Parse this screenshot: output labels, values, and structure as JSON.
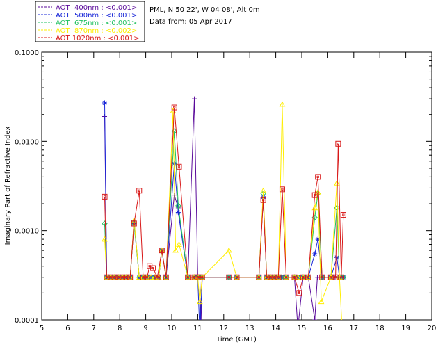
{
  "chart_data": {
    "type": "line",
    "header": {
      "station": "PML, N 50 22', W 04 08', Alt 0m",
      "date": "Data from: 05 Apr 2017"
    },
    "xlabel": "Time (GMT)",
    "ylabel": "Imaginary Part of Refractive Index",
    "x_ticks": [
      5,
      6,
      7,
      8,
      9,
      10,
      11,
      12,
      13,
      14,
      15,
      16,
      17,
      18,
      19,
      20
    ],
    "y_ticks": [
      {
        "value": 0.0001,
        "label": "0.0001"
      },
      {
        "value": 0.001,
        "label": "0.0010"
      },
      {
        "value": 0.01,
        "label": "0.0100"
      },
      {
        "value": 0.1,
        "label": "0.1000"
      }
    ],
    "xlim": [
      5,
      20
    ],
    "ylim": [
      0.0001,
      0.1
    ],
    "y_scale": "log",
    "legend_position": "top-left",
    "series": [
      {
        "name": "AOT  400nm : <0.001>",
        "color": "#5a0a9a",
        "marker": "plus",
        "points": [
          [
            7.42,
            0.019
          ],
          [
            7.5,
            0.0003
          ],
          [
            7.65,
            0.0003
          ],
          [
            7.8,
            0.0003
          ],
          [
            7.95,
            0.0003
          ],
          [
            8.1,
            0.0003
          ],
          [
            8.25,
            0.0003
          ],
          [
            8.4,
            0.0003
          ],
          [
            8.55,
            0.0013
          ],
          [
            8.75,
            0.0003
          ],
          [
            8.9,
            0.0003
          ],
          [
            9.05,
            0.0003
          ],
          [
            9.2,
            0.0003
          ],
          [
            9.35,
            0.0003
          ],
          [
            9.5,
            0.0003
          ],
          [
            9.62,
            0.0006
          ],
          [
            9.78,
            0.0003
          ],
          [
            10.1,
            0.0025
          ],
          [
            10.25,
            0.0018
          ],
          [
            10.62,
            0.0003
          ],
          [
            10.87,
            0.03
          ],
          [
            11.0,
            0.0003
          ],
          [
            11.08,
            0.0003
          ],
          [
            11.12,
            8e-05
          ],
          [
            11.17,
            0.0003
          ],
          [
            12.2,
            0.0003
          ],
          [
            12.5,
            0.0003
          ],
          [
            13.35,
            0.0003
          ],
          [
            13.52,
            0.0023
          ],
          [
            13.65,
            0.0003
          ],
          [
            13.8,
            0.0003
          ],
          [
            13.95,
            0.0003
          ],
          [
            14.1,
            0.0003
          ],
          [
            14.22,
            0.0003
          ],
          [
            14.4,
            0.0003
          ],
          [
            14.72,
            0.0003
          ],
          [
            14.85,
            8e-05
          ],
          [
            15.05,
            0.0003
          ],
          [
            15.25,
            0.0003
          ],
          [
            15.5,
            0.0001
          ],
          [
            15.6,
            0.0003
          ],
          [
            15.78,
            0.0003
          ],
          [
            16.12,
            0.0003
          ],
          [
            16.28,
            0.0003
          ],
          [
            16.4,
            0.0003
          ],
          [
            16.6,
            0.0003
          ]
        ]
      },
      {
        "name": "AOT  500nm : <0.001>",
        "color": "#1a28d8",
        "marker": "asterisk",
        "points": [
          [
            7.42,
            0.027
          ],
          [
            7.5,
            0.0003
          ],
          [
            7.65,
            0.0003
          ],
          [
            7.8,
            0.0003
          ],
          [
            7.95,
            0.0003
          ],
          [
            8.1,
            0.0003
          ],
          [
            8.25,
            0.0003
          ],
          [
            8.4,
            0.0003
          ],
          [
            8.55,
            0.0012
          ],
          [
            8.75,
            0.0003
          ],
          [
            8.9,
            0.0003
          ],
          [
            9.05,
            0.0003
          ],
          [
            9.2,
            0.0003
          ],
          [
            9.35,
            0.0003
          ],
          [
            9.5,
            0.0003
          ],
          [
            9.62,
            0.0006
          ],
          [
            9.78,
            0.0003
          ],
          [
            10.1,
            0.0056
          ],
          [
            10.25,
            0.0016
          ],
          [
            10.62,
            0.0003
          ],
          [
            10.87,
            0.0003
          ],
          [
            11.0,
            0.0003
          ],
          [
            11.08,
            7e-05
          ],
          [
            11.17,
            0.0003
          ],
          [
            12.2,
            0.0003
          ],
          [
            12.5,
            0.0003
          ],
          [
            13.35,
            0.0003
          ],
          [
            13.52,
            0.0024
          ],
          [
            13.65,
            0.0003
          ],
          [
            13.8,
            0.0003
          ],
          [
            13.95,
            0.0003
          ],
          [
            14.1,
            0.0003
          ],
          [
            14.22,
            0.0003
          ],
          [
            14.4,
            0.0003
          ],
          [
            14.72,
            0.0003
          ],
          [
            14.85,
            0.0003
          ],
          [
            15.05,
            0.0003
          ],
          [
            15.25,
            0.0003
          ],
          [
            15.5,
            0.00055
          ],
          [
            15.62,
            0.0008
          ],
          [
            15.78,
            0.0003
          ],
          [
            16.12,
            0.0003
          ],
          [
            16.35,
            0.0005
          ],
          [
            16.45,
            0.0003
          ],
          [
            16.6,
            0.0003
          ]
        ]
      },
      {
        "name": "AOT  675nm : <0.001>",
        "color": "#20c060",
        "marker": "diamond",
        "points": [
          [
            7.42,
            0.0012
          ],
          [
            7.5,
            0.0003
          ],
          [
            7.65,
            0.0003
          ],
          [
            7.8,
            0.0003
          ],
          [
            7.95,
            0.0003
          ],
          [
            8.1,
            0.0003
          ],
          [
            8.25,
            0.0003
          ],
          [
            8.4,
            0.0003
          ],
          [
            8.55,
            0.0012
          ],
          [
            8.75,
            0.0003
          ],
          [
            8.9,
            0.0003
          ],
          [
            9.05,
            0.0003
          ],
          [
            9.2,
            0.0003
          ],
          [
            9.35,
            0.0003
          ],
          [
            9.5,
            0.0003
          ],
          [
            9.62,
            0.0006
          ],
          [
            9.78,
            0.0003
          ],
          [
            10.1,
            0.013
          ],
          [
            10.25,
            0.0019
          ],
          [
            10.62,
            0.0003
          ],
          [
            10.87,
            0.0003
          ],
          [
            11.0,
            0.0003
          ],
          [
            11.08,
            0.0003
          ],
          [
            11.17,
            0.0003
          ],
          [
            12.2,
            0.0003
          ],
          [
            12.5,
            0.0003
          ],
          [
            13.35,
            0.0003
          ],
          [
            13.52,
            0.0026
          ],
          [
            13.65,
            0.0003
          ],
          [
            13.8,
            0.0003
          ],
          [
            13.95,
            0.0003
          ],
          [
            14.1,
            0.0003
          ],
          [
            14.22,
            0.0003
          ],
          [
            14.4,
            0.0003
          ],
          [
            14.72,
            0.0003
          ],
          [
            14.85,
            0.0003
          ],
          [
            15.05,
            0.0003
          ],
          [
            15.25,
            0.0003
          ],
          [
            15.5,
            0.0014
          ],
          [
            15.62,
            0.0026
          ],
          [
            15.78,
            0.0003
          ],
          [
            16.12,
            0.0003
          ],
          [
            16.35,
            0.0018
          ],
          [
            16.45,
            0.0003
          ],
          [
            16.6,
            0.0003
          ]
        ]
      },
      {
        "name": "AOT  870nm : <0.002>",
        "color": "#ffee00",
        "marker": "triangle",
        "points": [
          [
            7.42,
            0.0008
          ],
          [
            7.5,
            0.0003
          ],
          [
            7.65,
            0.0003
          ],
          [
            7.8,
            0.0003
          ],
          [
            7.95,
            0.0003
          ],
          [
            8.1,
            0.0003
          ],
          [
            8.25,
            0.0003
          ],
          [
            8.4,
            0.0003
          ],
          [
            8.55,
            0.0013
          ],
          [
            8.75,
            0.0003
          ],
          [
            8.9,
            0.0003
          ],
          [
            9.05,
            0.0003
          ],
          [
            9.2,
            0.0003
          ],
          [
            9.35,
            0.0003
          ],
          [
            9.5,
            0.0003
          ],
          [
            9.62,
            0.0006
          ],
          [
            9.78,
            0.0003
          ],
          [
            10.05,
            0.022
          ],
          [
            10.15,
            0.0006
          ],
          [
            10.28,
            0.0007
          ],
          [
            10.62,
            0.0003
          ],
          [
            10.87,
            0.0003
          ],
          [
            11.0,
            0.0003
          ],
          [
            11.08,
            0.00016
          ],
          [
            11.17,
            0.0003
          ],
          [
            12.2,
            0.0006
          ],
          [
            12.5,
            0.0003
          ],
          [
            13.35,
            0.0003
          ],
          [
            13.52,
            0.0028
          ],
          [
            13.65,
            0.0003
          ],
          [
            13.8,
            0.0003
          ],
          [
            13.95,
            0.0003
          ],
          [
            14.1,
            0.0003
          ],
          [
            14.25,
            0.026
          ],
          [
            14.4,
            0.0003
          ],
          [
            14.72,
            0.0003
          ],
          [
            14.85,
            0.0003
          ],
          [
            15.05,
            0.0003
          ],
          [
            15.25,
            0.0003
          ],
          [
            15.5,
            0.0018
          ],
          [
            15.62,
            0.0027
          ],
          [
            15.75,
            0.00016
          ],
          [
            16.12,
            0.0003
          ],
          [
            16.35,
            0.0034
          ],
          [
            16.45,
            0.0003
          ],
          [
            16.55,
            8e-05
          ]
        ]
      },
      {
        "name": "AOT 1020nm : <0.001>",
        "color": "#d81818",
        "marker": "square",
        "points": [
          [
            7.42,
            0.0024
          ],
          [
            7.5,
            0.0003
          ],
          [
            7.65,
            0.0003
          ],
          [
            7.8,
            0.0003
          ],
          [
            7.95,
            0.0003
          ],
          [
            8.1,
            0.0003
          ],
          [
            8.25,
            0.0003
          ],
          [
            8.4,
            0.0003
          ],
          [
            8.55,
            0.0012
          ],
          [
            8.75,
            0.0028
          ],
          [
            8.9,
            0.0003
          ],
          [
            9.05,
            0.0003
          ],
          [
            9.15,
            0.0004
          ],
          [
            9.28,
            0.00038
          ],
          [
            9.45,
            0.0003
          ],
          [
            9.62,
            0.0006
          ],
          [
            9.78,
            0.0003
          ],
          [
            10.1,
            0.024
          ],
          [
            10.28,
            0.0052
          ],
          [
            10.62,
            0.0003
          ],
          [
            10.87,
            0.0003
          ],
          [
            11.0,
            0.0003
          ],
          [
            11.08,
            0.0003
          ],
          [
            11.17,
            0.0003
          ],
          [
            12.2,
            0.0003
          ],
          [
            12.5,
            0.0003
          ],
          [
            13.35,
            0.0003
          ],
          [
            13.52,
            0.0022
          ],
          [
            13.65,
            0.0003
          ],
          [
            13.8,
            0.0003
          ],
          [
            13.95,
            0.0003
          ],
          [
            14.1,
            0.0003
          ],
          [
            14.25,
            0.0029
          ],
          [
            14.4,
            0.0003
          ],
          [
            14.72,
            0.0003
          ],
          [
            14.9,
            0.0002
          ],
          [
            15.05,
            0.0003
          ],
          [
            15.25,
            0.0003
          ],
          [
            15.5,
            0.0025
          ],
          [
            15.62,
            0.004
          ],
          [
            15.78,
            0.0003
          ],
          [
            16.12,
            0.0003
          ],
          [
            16.3,
            0.0003
          ],
          [
            16.4,
            0.0094
          ],
          [
            16.52,
            0.0003
          ],
          [
            16.6,
            0.0015
          ]
        ]
      }
    ]
  }
}
